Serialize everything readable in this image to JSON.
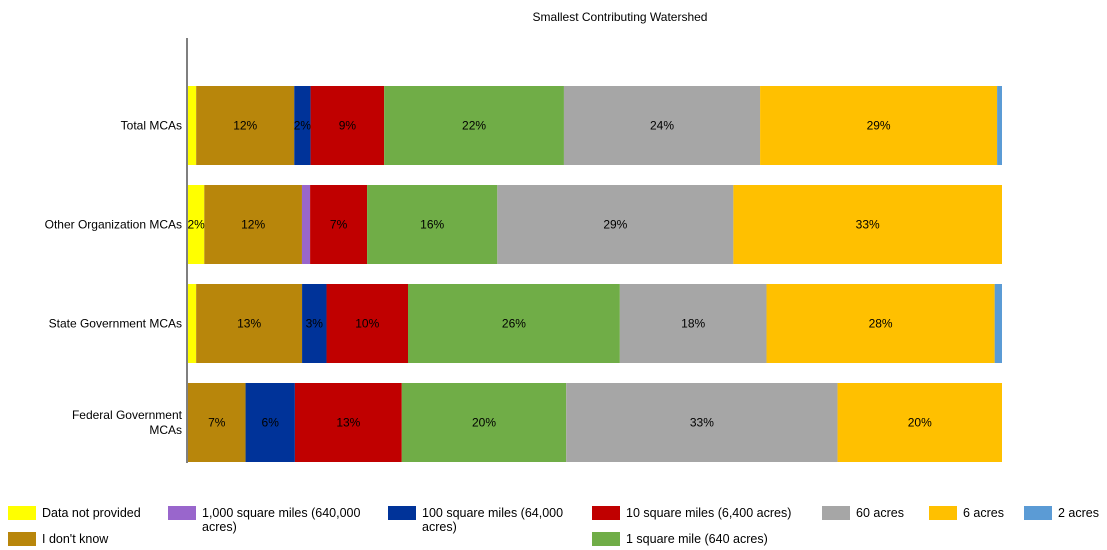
{
  "chart_data": {
    "type": "bar",
    "orientation": "horizontal",
    "stacked": true,
    "normalized": true,
    "title": "Smallest Contributing Watershed",
    "xlabel": "",
    "ylabel": "",
    "xlim": [
      0,
      100
    ],
    "grid": false,
    "legend_position": "bottom",
    "categories": [
      "Total MCAs",
      "Other Organization MCAs",
      "State Government MCAs",
      "Federal Government MCAs"
    ],
    "category_display": [
      [
        "Total MCAs"
      ],
      [
        "Other Organization MCAs"
      ],
      [
        "State Government MCAs"
      ],
      [
        "Federal Government",
        "MCAs"
      ]
    ],
    "series": [
      {
        "name": "Data not provided",
        "color": "#FFFF00",
        "values": [
          1,
          2,
          1,
          0
        ],
        "labels": [
          "",
          "2%",
          "",
          ""
        ]
      },
      {
        "name": "I don't know",
        "color": "#B8860B",
        "values": [
          12,
          12,
          13,
          7
        ],
        "labels": [
          "12%",
          "12%",
          "13%",
          "7%"
        ]
      },
      {
        "name": "1,000 square miles (640,000 acres)",
        "color": "#9966CC",
        "values": [
          0,
          1,
          0,
          0
        ],
        "labels": [
          "",
          "",
          "",
          ""
        ]
      },
      {
        "name": "100 square miles (64,000 acres)",
        "color": "#003399",
        "values": [
          2,
          0,
          3,
          6
        ],
        "labels": [
          "2%",
          "",
          "3%",
          "6%"
        ]
      },
      {
        "name": "10 square miles (6,400 acres)",
        "color": "#C00000",
        "values": [
          9,
          7,
          10,
          13
        ],
        "labels": [
          "9%",
          "7%",
          "10%",
          "13%"
        ]
      },
      {
        "name": "1 square mile (640 acres)",
        "color": "#70AD47",
        "values": [
          22,
          16,
          26,
          20
        ],
        "labels": [
          "22%",
          "16%",
          "26%",
          "20%"
        ]
      },
      {
        "name": "60 acres",
        "color": "#A6A6A6",
        "values": [
          24,
          29,
          18,
          33
        ],
        "labels": [
          "24%",
          "29%",
          "18%",
          "33%"
        ]
      },
      {
        "name": "6 acres",
        "color": "#FFC000",
        "values": [
          29,
          33,
          28,
          20
        ],
        "labels": [
          "29%",
          "33%",
          "28%",
          "20%"
        ]
      },
      {
        "name": "2 acres",
        "color": "#5B9BD5",
        "values": [
          0.6,
          0,
          0.9,
          0
        ],
        "labels": [
          "",
          "",
          "",
          ""
        ]
      }
    ]
  }
}
